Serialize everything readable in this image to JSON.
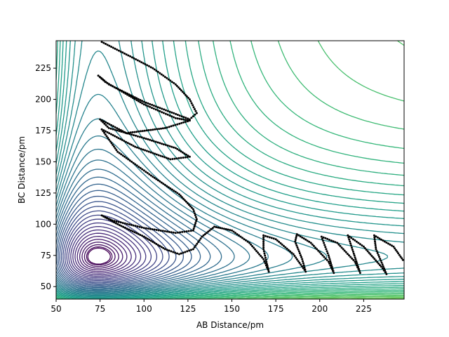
{
  "chart_data": {
    "type": "contour",
    "title": "",
    "xlabel": "AB Distance/pm",
    "ylabel": "BC Distance/pm",
    "xlim": [
      50,
      248
    ],
    "ylim": [
      40,
      247
    ],
    "x_ticks": [
      50,
      75,
      100,
      125,
      150,
      175,
      200,
      225
    ],
    "y_ticks": [
      50,
      75,
      100,
      125,
      150,
      175,
      200,
      225
    ],
    "grid": false,
    "legend": "none",
    "colormap": "viridis",
    "contour_levels": 55,
    "trajectory_color": "#000000",
    "trajectory_sample_points": [
      [
        76,
        246
      ],
      [
        90,
        236
      ],
      [
        105,
        225
      ],
      [
        118,
        212
      ],
      [
        126,
        200
      ],
      [
        130,
        189
      ],
      [
        126,
        184
      ],
      [
        100,
        198
      ],
      [
        80,
        212
      ],
      [
        74,
        219
      ],
      [
        78,
        214
      ],
      [
        100,
        196
      ],
      [
        118,
        185
      ],
      [
        126,
        183
      ],
      [
        112,
        177
      ],
      [
        90,
        173
      ],
      [
        75,
        184
      ],
      [
        80,
        177
      ],
      [
        100,
        169
      ],
      [
        118,
        161
      ],
      [
        126,
        154
      ],
      [
        115,
        152
      ],
      [
        95,
        162
      ],
      [
        76,
        176
      ],
      [
        85,
        158
      ],
      [
        105,
        138
      ],
      [
        120,
        124
      ],
      [
        128,
        112
      ],
      [
        130,
        104
      ],
      [
        128,
        95
      ],
      [
        118,
        93
      ],
      [
        100,
        97
      ],
      [
        82,
        103
      ],
      [
        76,
        107
      ],
      [
        85,
        100
      ],
      [
        100,
        90
      ],
      [
        112,
        80
      ],
      [
        120,
        76
      ],
      [
        128,
        80
      ],
      [
        133,
        90
      ],
      [
        140,
        98
      ],
      [
        150,
        95
      ],
      [
        160,
        85
      ],
      [
        168,
        72
      ],
      [
        171,
        62
      ],
      [
        170,
        68
      ],
      [
        168,
        80
      ],
      [
        168,
        91
      ],
      [
        175,
        88
      ],
      [
        185,
        76
      ],
      [
        192,
        62
      ],
      [
        190,
        72
      ],
      [
        186,
        86
      ],
      [
        187,
        92
      ],
      [
        195,
        85
      ],
      [
        205,
        70
      ],
      [
        208,
        61
      ],
      [
        205,
        75
      ],
      [
        201,
        90
      ],
      [
        210,
        85
      ],
      [
        220,
        70
      ],
      [
        223,
        61
      ],
      [
        219,
        78
      ],
      [
        216,
        91
      ],
      [
        225,
        82
      ],
      [
        235,
        66
      ],
      [
        238,
        60
      ],
      [
        232,
        80
      ],
      [
        231,
        91
      ],
      [
        242,
        82
      ],
      [
        248,
        70
      ]
    ]
  }
}
